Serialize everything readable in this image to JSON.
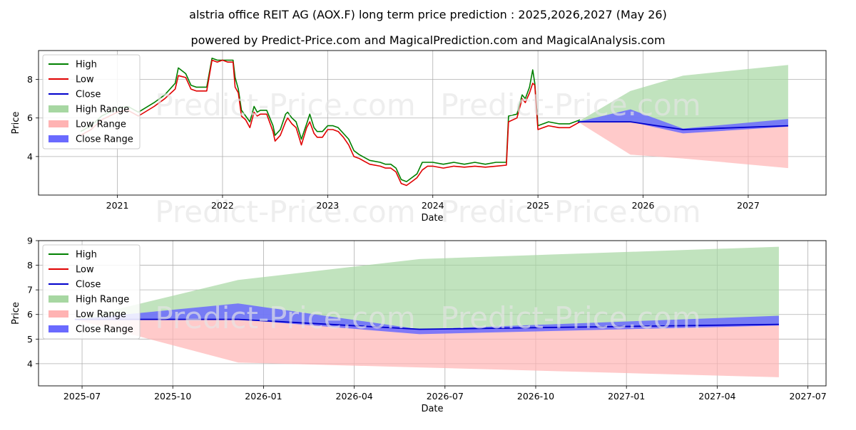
{
  "title_line1": "alstria office REIT AG (AOX.F) long term price prediction : 2025,2026,2027 (May 26)",
  "title_line2": "powered by Predict-Price.com and MagicalPrediction.com and MagicalAnalysis.com",
  "watermark": "Predict-Price.com",
  "colors": {
    "high": "#008000",
    "low": "#e00000",
    "close": "#0000cc",
    "high_range": "#a7d7a2",
    "low_range": "#ffb3b3",
    "close_range": "#6a6aff"
  },
  "chart_data": [
    {
      "type": "line",
      "name": "top",
      "xlabel": "Date",
      "ylabel": "Price",
      "grid": true,
      "legend_position": "top-left",
      "xlim": [
        2020.25,
        2027.74
      ],
      "ylim": [
        2.0,
        9.5
      ],
      "x_ticks": [
        2021,
        2022,
        2023,
        2024,
        2025,
        2026,
        2027
      ],
      "x_tick_labels": [
        "2021",
        "2022",
        "2023",
        "2024",
        "2025",
        "2026",
        "2027"
      ],
      "y_ticks": [
        4,
        6,
        8
      ],
      "y_tick_labels": [
        "4",
        "6",
        "8"
      ],
      "legend": [
        "High",
        "Low",
        "Close",
        "High Range",
        "Low Range",
        "Close Range"
      ],
      "history": {
        "x": [
          2020.65,
          2020.75,
          2020.85,
          2021.0,
          2021.1,
          2021.2,
          2021.35,
          2021.45,
          2021.55,
          2021.58,
          2021.65,
          2021.7,
          2021.75,
          2021.85,
          2021.9,
          2021.95,
          2022.0,
          2022.05,
          2022.1,
          2022.12,
          2022.15,
          2022.18,
          2022.22,
          2022.26,
          2022.3,
          2022.33,
          2022.36,
          2022.42,
          2022.48,
          2022.5,
          2022.55,
          2022.6,
          2022.62,
          2022.66,
          2022.7,
          2022.75,
          2022.8,
          2022.83,
          2022.87,
          2022.9,
          2022.95,
          2023.0,
          2023.05,
          2023.1,
          2023.15,
          2023.2,
          2023.25,
          2023.3,
          2023.4,
          2023.5,
          2023.55,
          2023.6,
          2023.65,
          2023.7,
          2023.75,
          2023.8,
          2023.85,
          2023.9,
          2023.95,
          2024.0,
          2024.1,
          2024.2,
          2024.3,
          2024.4,
          2024.5,
          2024.6,
          2024.7,
          2024.72,
          2024.8,
          2024.85,
          2024.88,
          2024.92,
          2024.95,
          2024.97,
          2025.0,
          2025.05,
          2025.1,
          2025.2,
          2025.3,
          2025.4
        ],
        "low": [
          5.1,
          5.4,
          5.9,
          6.3,
          6.4,
          6.1,
          6.6,
          7.0,
          7.5,
          8.2,
          8.1,
          7.5,
          7.4,
          7.4,
          9.0,
          8.9,
          9.0,
          8.9,
          8.9,
          7.6,
          7.3,
          6.1,
          5.9,
          5.5,
          6.3,
          6.1,
          6.2,
          6.2,
          5.3,
          4.8,
          5.1,
          5.8,
          6.0,
          5.7,
          5.5,
          4.6,
          5.5,
          5.8,
          5.2,
          5.0,
          5.0,
          5.4,
          5.4,
          5.3,
          5.0,
          4.6,
          4.0,
          3.9,
          3.6,
          3.5,
          3.4,
          3.4,
          3.2,
          2.6,
          2.5,
          2.7,
          2.9,
          3.3,
          3.5,
          3.5,
          3.4,
          3.5,
          3.45,
          3.5,
          3.45,
          3.5,
          3.55,
          5.8,
          6.0,
          7.0,
          6.8,
          7.3,
          7.8,
          7.7,
          5.4,
          5.5,
          5.6,
          5.5,
          5.5,
          5.8
        ],
        "high": [
          5.3,
          5.6,
          6.1,
          6.5,
          6.6,
          6.3,
          6.8,
          7.2,
          7.8,
          8.6,
          8.3,
          7.7,
          7.6,
          7.6,
          9.1,
          9.0,
          9.0,
          9.0,
          9.0,
          8.1,
          7.5,
          6.4,
          6.1,
          5.8,
          6.6,
          6.3,
          6.4,
          6.4,
          5.6,
          5.1,
          5.4,
          6.2,
          6.3,
          6.0,
          5.8,
          4.9,
          5.7,
          6.2,
          5.5,
          5.3,
          5.3,
          5.6,
          5.6,
          5.5,
          5.2,
          4.9,
          4.3,
          4.1,
          3.8,
          3.7,
          3.6,
          3.6,
          3.4,
          2.8,
          2.7,
          2.9,
          3.1,
          3.7,
          3.7,
          3.7,
          3.6,
          3.7,
          3.6,
          3.7,
          3.6,
          3.7,
          3.7,
          6.1,
          6.2,
          7.2,
          7.0,
          7.6,
          8.5,
          7.8,
          5.6,
          5.7,
          5.8,
          5.7,
          5.7,
          5.9
        ]
      },
      "forecast": {
        "x": [
          2025.38,
          2025.88,
          2026.38,
          2027.38
        ],
        "close": [
          5.8,
          5.8,
          5.4,
          5.6
        ],
        "high_range_upper": [
          5.8,
          7.4,
          8.2,
          8.75
        ],
        "high_range_lower": [
          5.8,
          5.8,
          5.4,
          5.6
        ],
        "low_range_upper": [
          5.8,
          5.8,
          5.4,
          5.6
        ],
        "low_range_lower": [
          5.8,
          4.1,
          3.9,
          3.4
        ],
        "close_range_upper": [
          5.8,
          6.45,
          5.45,
          5.95
        ],
        "close_range_lower": [
          5.8,
          5.8,
          5.2,
          5.55
        ]
      }
    },
    {
      "type": "line",
      "name": "bottom",
      "xlabel": "Date",
      "ylabel": "Price",
      "grid": true,
      "legend_position": "top-left",
      "xlim": [
        2025.38,
        2027.55
      ],
      "ylim": [
        3.1,
        9.0
      ],
      "x_ticks": [
        2025.5,
        2025.75,
        2026.0,
        2026.25,
        2026.5,
        2026.75,
        2027.0,
        2027.25,
        2027.5
      ],
      "x_tick_labels": [
        "2025-07",
        "2025-10",
        "2026-01",
        "2026-04",
        "2026-07",
        "2026-10",
        "2027-01",
        "2027-04",
        "2027-07"
      ],
      "y_ticks": [
        4,
        5,
        6,
        7,
        8,
        9
      ],
      "y_tick_labels": [
        "4",
        "5",
        "6",
        "7",
        "8",
        "9"
      ],
      "legend": [
        "High",
        "Low",
        "Close",
        "High Range",
        "Low Range",
        "Close Range"
      ],
      "forecast": {
        "x": [
          2025.48,
          2025.93,
          2026.43,
          2027.42
        ],
        "close": [
          5.8,
          5.8,
          5.4,
          5.6
        ],
        "high_range_upper": [
          5.8,
          7.4,
          8.25,
          8.75
        ],
        "high_range_lower": [
          5.8,
          5.8,
          5.4,
          5.6
        ],
        "low_range_upper": [
          5.8,
          5.8,
          5.4,
          5.6
        ],
        "low_range_lower": [
          5.8,
          4.05,
          3.85,
          3.45
        ],
        "close_range_upper": [
          5.8,
          6.45,
          5.4,
          5.95
        ],
        "close_range_lower": [
          5.8,
          5.8,
          5.2,
          5.55
        ]
      }
    }
  ]
}
